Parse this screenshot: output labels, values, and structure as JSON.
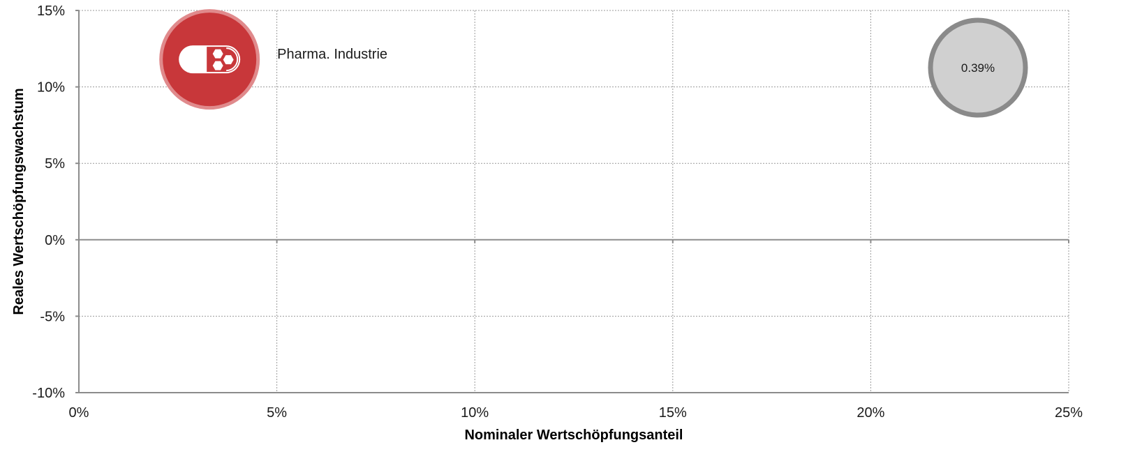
{
  "chart_data": {
    "type": "scatter",
    "title": "",
    "xlabel": "Nominaler Wertschöpfungsanteil",
    "ylabel": "Reales Wertschöpfungswachstum",
    "xlim": [
      0,
      25
    ],
    "ylim": [
      -10,
      15
    ],
    "x_ticks": [
      0,
      5,
      10,
      15,
      20,
      25
    ],
    "y_ticks": [
      -10,
      -5,
      0,
      5,
      10,
      15
    ],
    "x_tick_labels": [
      "0%",
      "5%",
      "10%",
      "15%",
      "20%",
      "25%"
    ],
    "y_tick_labels": [
      "-10%",
      "-5%",
      "0%",
      "5%",
      "10%",
      "15%"
    ],
    "grid": true,
    "points": [
      {
        "label": "Pharma. Industrie",
        "x": 3.3,
        "y": 11.8,
        "icon": "pill-capsule-icon",
        "color": "#c8373a",
        "ring_color": "#e08a8c"
      }
    ],
    "size_legend": {
      "label": "0.39%",
      "position": "top-right",
      "fill": "#d0d0d0",
      "stroke": "#8a8a8a"
    }
  }
}
